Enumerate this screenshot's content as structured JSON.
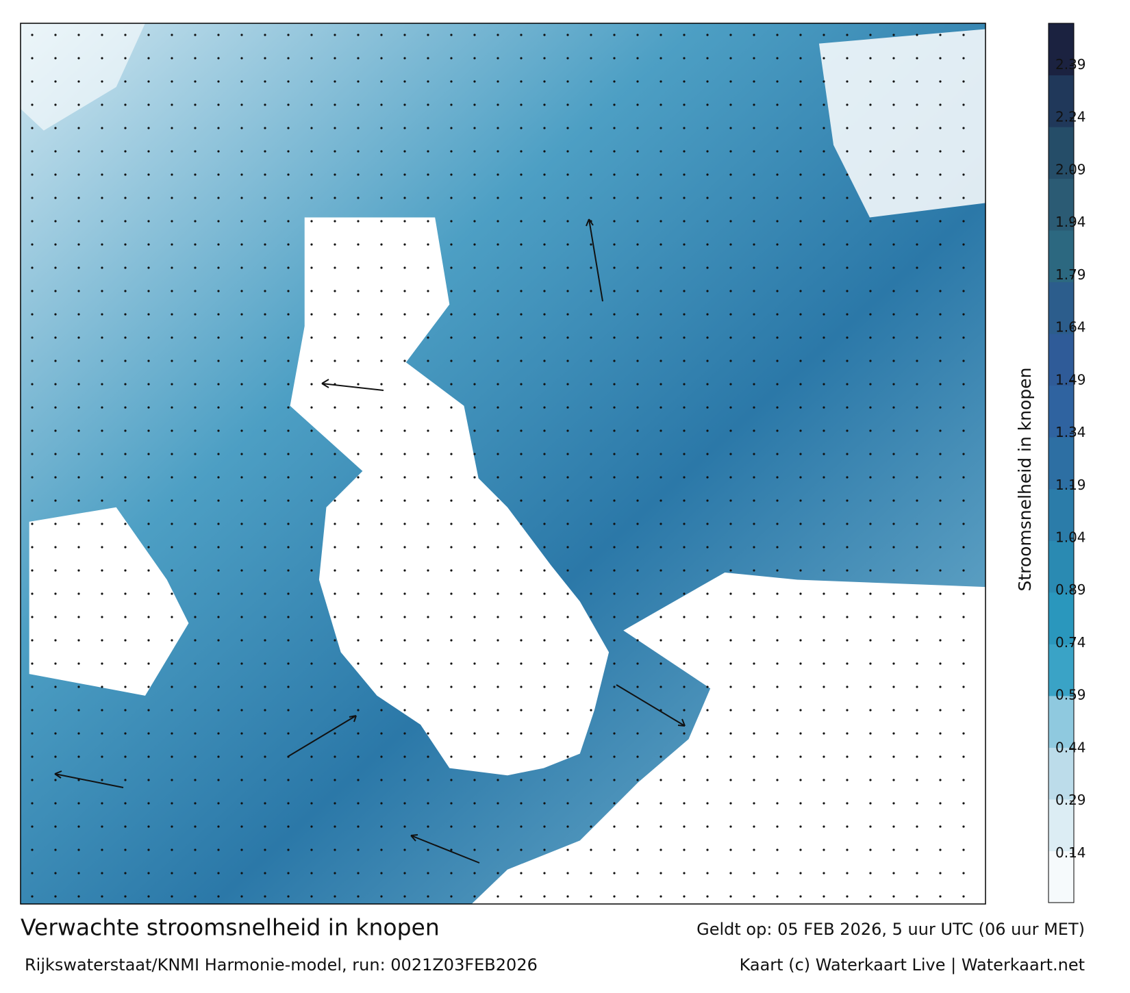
{
  "map": {
    "title": "Verwachte stroomsnelheid in knopen",
    "subtitle": "Rijkswaterstaat/KNMI Harmonie-model, run: 0021Z03FEB2026",
    "valid_time": "Geldt op: 05 FEB 2026, 5 uur UTC (06 uur MET)",
    "credit": "Kaart (c) Waterkaart Live | Waterkaart.net"
  },
  "colorbar": {
    "label": "Stroomsnelheid in knopen",
    "lim": [
      0,
      2.51
    ],
    "ticks": [
      0.14,
      0.29,
      0.44,
      0.59,
      0.74,
      0.89,
      1.04,
      1.19,
      1.34,
      1.49,
      1.64,
      1.79,
      1.94,
      2.09,
      2.24,
      2.39
    ],
    "colors": [
      "#f6fafc",
      "#dcedf4",
      "#bcdcea",
      "#8fc9df",
      "#3aa3c6",
      "#2a97bd",
      "#2a8ab2",
      "#2b7ca9",
      "#2d6fa3",
      "#2f63a0",
      "#2f5b98",
      "#2c5d8c",
      "#2c6880",
      "#2b5b74",
      "#254d68",
      "#20385a",
      "#1b2240"
    ]
  }
}
